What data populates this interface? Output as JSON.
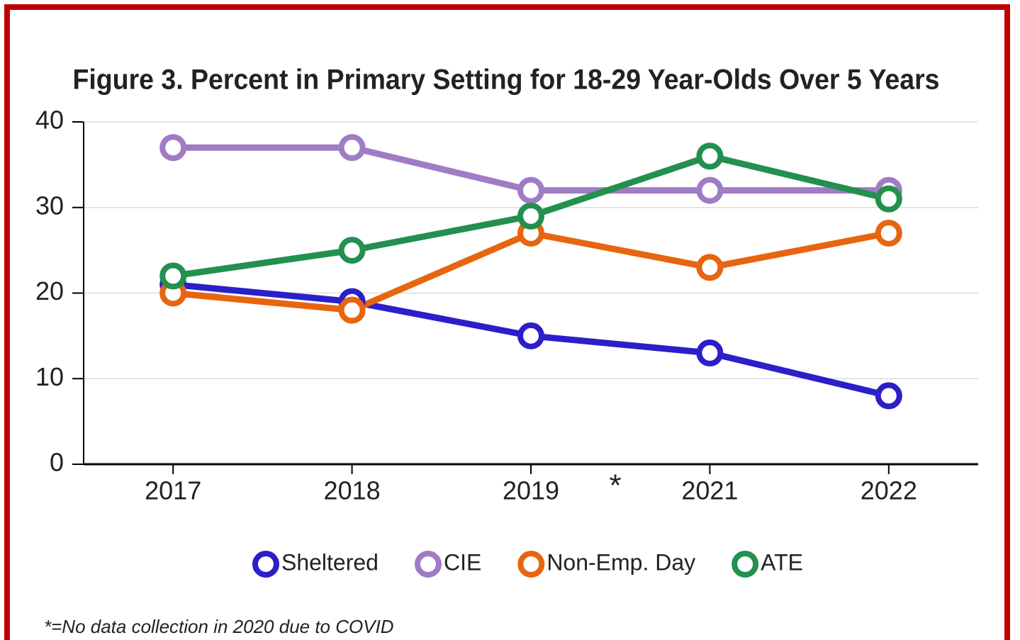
{
  "chart_data": {
    "type": "line",
    "title": "Figure 3. Percent in Primary Setting for 18-29 Year-Olds Over 5 Years",
    "categories": [
      "2017",
      "2018",
      "2019",
      "2021",
      "2022"
    ],
    "series": [
      {
        "name": "Sheltered",
        "color": "#2a1fc9",
        "values": [
          21,
          19,
          15,
          13,
          8
        ]
      },
      {
        "name": "CIE",
        "color": "#a07cc5",
        "values": [
          37,
          37,
          32,
          32,
          32
        ]
      },
      {
        "name": "Non-Emp. Day",
        "color": "#e8650f",
        "values": [
          20,
          18,
          27,
          23,
          27
        ]
      },
      {
        "name": "ATE",
        "color": "#23904f",
        "values": [
          22,
          25,
          29,
          36,
          31
        ]
      }
    ],
    "ylim": [
      0,
      40
    ],
    "yticks": [
      0,
      10,
      20,
      30,
      40
    ],
    "grid": true,
    "legend": "bottom",
    "gap_marker": "*",
    "footnote": "*=No data collection in 2020 due to COVID"
  }
}
